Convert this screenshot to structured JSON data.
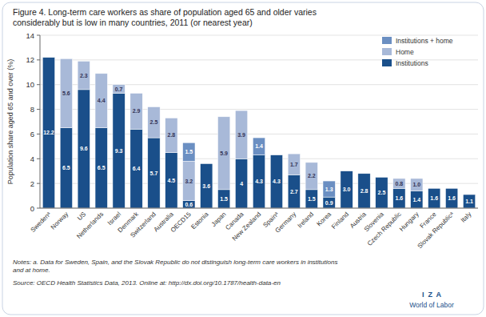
{
  "chart_data": {
    "type": "bar",
    "stacked": true,
    "title": "Figure 4. Long-term care workers as share of population aged 65 and older varies",
    "subtitle": "considerably but is low in many countries, 2011 (or nearest year)",
    "y_label": "Population share aged 65 and over (%)",
    "ylim": [
      0,
      14
    ],
    "yticks": [
      0,
      2,
      4,
      6,
      8,
      10,
      12,
      14
    ],
    "grid": true,
    "legend": "upper right",
    "data_labels": true,
    "categories": [
      "Swedenᵃ",
      "Norway",
      "US",
      "Netherlands",
      "Israel",
      "Denmark",
      "Switzerland",
      "Australia",
      "OECD15",
      "Estonia",
      "Japan",
      "Canada",
      "New Zealand",
      "Spainᵃ",
      "Germany",
      "Ireland",
      "Korea",
      "Finland",
      "Austria",
      "Slovenia",
      "Czech Republic",
      "Hungary",
      "France",
      "Slovak Republicᵃ",
      "Italy"
    ],
    "series": [
      {
        "name": "Institutions",
        "color": "#1a4f8a",
        "values": [
          12.2,
          6.5,
          9.6,
          6.5,
          9.3,
          6.4,
          5.7,
          4.5,
          0.6,
          3.6,
          1.5,
          4.0,
          4.3,
          4.3,
          2.7,
          1.5,
          0.9,
          3.0,
          2.8,
          2.5,
          1.6,
          1.4,
          1.6,
          1.6,
          1.1
        ],
        "value_labels": [
          "12.2",
          "6.5",
          "9.6",
          "6.5",
          "9.3",
          "6.4",
          "5.7",
          "4.5",
          "0.6",
          "3.6",
          "1.5",
          "4",
          "4.3",
          "4.3",
          "2.7",
          "1.5",
          "0.9",
          "3.0",
          "2.8",
          "2.5",
          "1.6",
          "1.4",
          "1.6",
          "1.6",
          "1.1"
        ]
      },
      {
        "name": "Home",
        "color": "#a8b9d8",
        "values": [
          0.0,
          5.6,
          2.3,
          4.4,
          0.7,
          2.9,
          2.5,
          2.8,
          3.2,
          0.0,
          5.9,
          3.9,
          0.0,
          0.0,
          1.7,
          2.2,
          0.0,
          0.0,
          0.0,
          0.0,
          0.8,
          1.0,
          0.0,
          0.0,
          0.0
        ],
        "value_labels": [
          null,
          "5.6",
          "2.3",
          "4.4",
          "0.7",
          "2.9",
          "2.5",
          "2.8",
          "3.2",
          null,
          "5.9",
          "3.9",
          null,
          null,
          "1.7",
          "2.2",
          null,
          null,
          null,
          null,
          "0.8",
          "1.0",
          null,
          null,
          null
        ]
      },
      {
        "name": "Institutions + home",
        "color": "#6b8fc2",
        "values": [
          0.0,
          0.0,
          0.0,
          0.0,
          0.0,
          0.0,
          0.0,
          0.0,
          1.5,
          0.0,
          0.0,
          0.0,
          1.4,
          0.0,
          0.0,
          0.0,
          1.3,
          0.0,
          0.0,
          0.0,
          0.0,
          0.0,
          0.0,
          0.0,
          0.0
        ],
        "value_labels": [
          null,
          null,
          null,
          null,
          null,
          null,
          null,
          null,
          "1.5",
          null,
          null,
          null,
          "1.4",
          null,
          null,
          null,
          "1.3",
          null,
          null,
          null,
          null,
          null,
          null,
          null,
          null
        ]
      }
    ],
    "annotations": [
      "Notes: a. Data for Sweden, Spain, and the Slovak Republic do not distinguish long-term care workers in institutions\nand at home.",
      "Source: OECD Health Statistics Data, 2013. Online at: http://dx.doi.org/10.1787/health-data-en",
      "I  Z  A",
      "World of Labor"
    ]
  }
}
